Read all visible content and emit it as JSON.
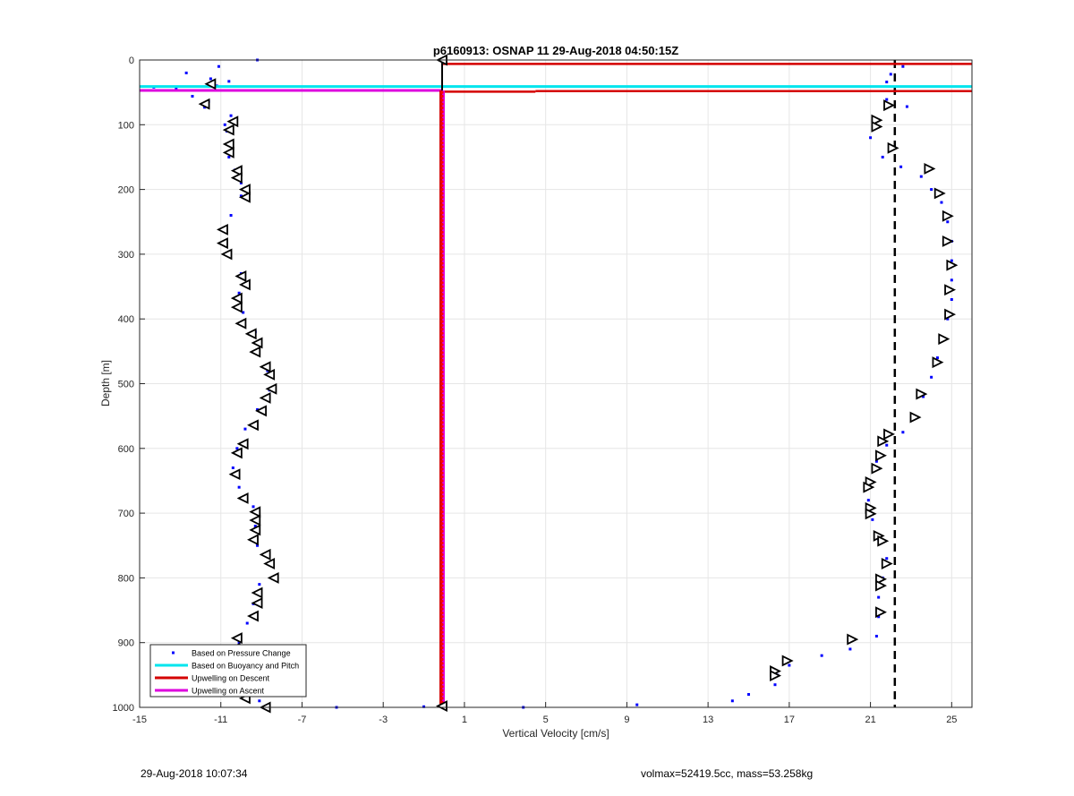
{
  "chart_data": {
    "type": "scatter",
    "title": "p6160913: OSNAP 11 29-Aug-2018 04:50:15Z",
    "xlabel": "Vertical Velocity [cm/s]",
    "ylabel": "Depth [m]",
    "xlim": [
      -15,
      26
    ],
    "ylim": [
      0,
      1000
    ],
    "y_reversed": true,
    "x_ticks": [
      "-15",
      "-11",
      "-7",
      "-3",
      "1",
      "5",
      "9",
      "13",
      "17",
      "21",
      "25"
    ],
    "y_ticks": [
      "0",
      "100",
      "200",
      "300",
      "400",
      "500",
      "600",
      "700",
      "800",
      "900",
      "1000"
    ],
    "grid": true,
    "legend_position": "bottom-left",
    "legend": [
      {
        "label": "Based on Pressure Change",
        "style": "dots",
        "color": "#0000ff"
      },
      {
        "label": "Based on Buoyancy and Pitch",
        "style": "line",
        "color": "#00e5ee"
      },
      {
        "label": "Upwelling on Descent",
        "style": "line",
        "color": "#d40000"
      },
      {
        "label": "Upwelling on Ascent",
        "style": "line",
        "color": "#dd00dd"
      }
    ],
    "colors": {
      "pressure": "#0000ff",
      "buoyancy": "#00e5ee",
      "descent": "#d40000",
      "ascent": "#dd00dd",
      "marker_fill": "#ff0000"
    },
    "reference_lines": {
      "dashed_x": 22.2,
      "upwelling_x": -0.1,
      "cyan_depth": 41,
      "magenta_depth": 47,
      "red_segments": [
        {
          "x1": -0.1,
          "x2": 26,
          "depth": 6
        },
        {
          "x1": -0.1,
          "x2": 4.5,
          "depth": 49
        },
        {
          "x1": 4.5,
          "x2": 26,
          "depth": 48
        }
      ],
      "black_vertical": {
        "x": -0.1,
        "from_depth": 0,
        "to_depth": 50
      }
    },
    "series": [
      {
        "name": "Based on Pressure Change",
        "role": "descent",
        "points": [
          [
            -9.2,
            0
          ],
          [
            -11.1,
            10
          ],
          [
            -12.7,
            20
          ],
          [
            -11.5,
            29
          ],
          [
            -10.6,
            33
          ],
          [
            -11.2,
            40
          ],
          [
            -13.2,
            45
          ],
          [
            -14.3,
            42
          ],
          [
            -12.4,
            56
          ],
          [
            -11.6,
            64
          ],
          [
            -11.8,
            73
          ],
          [
            -10.5,
            86
          ],
          [
            -10.8,
            100
          ],
          [
            -10.7,
            110
          ],
          [
            -10.7,
            130
          ],
          [
            -10.6,
            150
          ],
          [
            -10.3,
            170
          ],
          [
            -10.0,
            190
          ],
          [
            -10.0,
            210
          ],
          [
            -10.5,
            240
          ],
          [
            -10.9,
            260
          ],
          [
            -10.8,
            280
          ],
          [
            -10.6,
            300
          ],
          [
            -10.0,
            330
          ],
          [
            -10.1,
            360
          ],
          [
            -9.9,
            390
          ],
          [
            -9.3,
            420
          ],
          [
            -9.2,
            450
          ],
          [
            -8.7,
            480
          ],
          [
            -8.6,
            510
          ],
          [
            -9.2,
            540
          ],
          [
            -9.8,
            570
          ],
          [
            -10.2,
            600
          ],
          [
            -10.4,
            630
          ],
          [
            -10.1,
            660
          ],
          [
            -9.4,
            690
          ],
          [
            -9.3,
            720
          ],
          [
            -9.2,
            750
          ],
          [
            -8.6,
            780
          ],
          [
            -9.1,
            810
          ],
          [
            -9.4,
            840
          ],
          [
            -9.7,
            870
          ],
          [
            -10.1,
            900
          ],
          [
            -10.5,
            930
          ],
          [
            -10.3,
            960
          ],
          [
            -9.1,
            990
          ]
        ]
      },
      {
        "name": "Based on Pressure Change",
        "role": "ascent",
        "points": [
          [
            22.6,
            10
          ],
          [
            22.0,
            22
          ],
          [
            21.8,
            34
          ],
          [
            22.2,
            48
          ],
          [
            21.8,
            61
          ],
          [
            22.8,
            72
          ],
          [
            21.2,
            100
          ],
          [
            21.0,
            120
          ],
          [
            21.6,
            150
          ],
          [
            22.5,
            165
          ],
          [
            23.5,
            180
          ],
          [
            24.0,
            200
          ],
          [
            24.5,
            220
          ],
          [
            24.8,
            250
          ],
          [
            25.0,
            280
          ],
          [
            25.0,
            310
          ],
          [
            25.0,
            340
          ],
          [
            25.0,
            370
          ],
          [
            24.8,
            400
          ],
          [
            24.6,
            430
          ],
          [
            24.3,
            460
          ],
          [
            24.0,
            490
          ],
          [
            23.6,
            520
          ],
          [
            23.2,
            550
          ],
          [
            22.6,
            575
          ],
          [
            21.8,
            595
          ],
          [
            21.3,
            620
          ],
          [
            21.0,
            650
          ],
          [
            20.9,
            680
          ],
          [
            21.1,
            710
          ],
          [
            21.4,
            740
          ],
          [
            21.8,
            770
          ],
          [
            21.6,
            800
          ],
          [
            21.4,
            830
          ],
          [
            21.4,
            860
          ],
          [
            21.3,
            890
          ],
          [
            20.0,
            910
          ],
          [
            18.6,
            920
          ],
          [
            17.0,
            935
          ],
          [
            16.4,
            950
          ],
          [
            16.3,
            965
          ],
          [
            15.0,
            980
          ],
          [
            14.2,
            990
          ],
          [
            3.9,
            1000
          ],
          [
            -1.0,
            999
          ],
          [
            -5.3,
            1000
          ],
          [
            9.5,
            996
          ]
        ]
      },
      {
        "name": "Upwelling on Descent",
        "markers": [
          [
            -0.1,
            0
          ],
          [
            -11.5,
            37
          ],
          [
            -11.8,
            68
          ],
          [
            -10.4,
            95
          ],
          [
            -10.6,
            108
          ],
          [
            -10.6,
            130
          ],
          [
            -10.6,
            143
          ],
          [
            -10.2,
            171
          ],
          [
            -10.2,
            182
          ],
          [
            -9.8,
            200
          ],
          [
            -9.8,
            212
          ],
          [
            -10.9,
            262
          ],
          [
            -10.9,
            283
          ],
          [
            -10.7,
            300
          ],
          [
            -10.0,
            334
          ],
          [
            -9.8,
            347
          ],
          [
            -10.2,
            368
          ],
          [
            -10.2,
            382
          ],
          [
            -10.0,
            407
          ],
          [
            -9.5,
            423
          ],
          [
            -9.2,
            437
          ],
          [
            -9.3,
            451
          ],
          [
            -8.8,
            474
          ],
          [
            -8.6,
            486
          ],
          [
            -8.5,
            508
          ],
          [
            -8.8,
            522
          ],
          [
            -9.0,
            542
          ],
          [
            -9.4,
            564
          ],
          [
            -9.9,
            593
          ],
          [
            -10.2,
            607
          ],
          [
            -10.3,
            640
          ],
          [
            -9.9,
            677
          ],
          [
            -9.3,
            698
          ],
          [
            -9.3,
            711
          ],
          [
            -9.3,
            726
          ],
          [
            -9.4,
            741
          ],
          [
            -8.8,
            764
          ],
          [
            -8.6,
            778
          ],
          [
            -8.4,
            800
          ],
          [
            -9.2,
            823
          ],
          [
            -9.2,
            839
          ],
          [
            -9.4,
            859
          ],
          [
            -10.2,
            893
          ],
          [
            -10.3,
            909
          ],
          [
            -10.3,
            935
          ],
          [
            -10.3,
            952
          ],
          [
            -9.8,
            986
          ],
          [
            -8.8,
            1000
          ],
          [
            -0.1,
            998
          ]
        ]
      },
      {
        "name": "Upwelling on Ascent",
        "markers": [
          [
            21.9,
            70
          ],
          [
            21.3,
            93
          ],
          [
            21.3,
            103
          ],
          [
            22.1,
            136
          ],
          [
            23.9,
            168
          ],
          [
            24.4,
            206
          ],
          [
            24.8,
            241
          ],
          [
            24.8,
            280
          ],
          [
            25.0,
            317
          ],
          [
            24.9,
            355
          ],
          [
            24.9,
            393
          ],
          [
            24.6,
            431
          ],
          [
            24.3,
            467
          ],
          [
            23.5,
            516
          ],
          [
            23.2,
            552
          ],
          [
            21.9,
            578
          ],
          [
            21.6,
            589
          ],
          [
            21.5,
            611
          ],
          [
            21.3,
            631
          ],
          [
            21.0,
            652
          ],
          [
            20.9,
            660
          ],
          [
            21.0,
            692
          ],
          [
            21.0,
            701
          ],
          [
            21.4,
            735
          ],
          [
            21.6,
            743
          ],
          [
            21.8,
            778
          ],
          [
            21.5,
            802
          ],
          [
            21.5,
            812
          ],
          [
            21.5,
            853
          ],
          [
            20.1,
            895
          ],
          [
            16.9,
            928
          ],
          [
            16.3,
            944
          ],
          [
            16.3,
            951
          ]
        ]
      }
    ]
  },
  "footer": {
    "left": "29-Aug-2018 10:07:34",
    "right": "volmax=52419.5cc, mass=53.258kg"
  }
}
